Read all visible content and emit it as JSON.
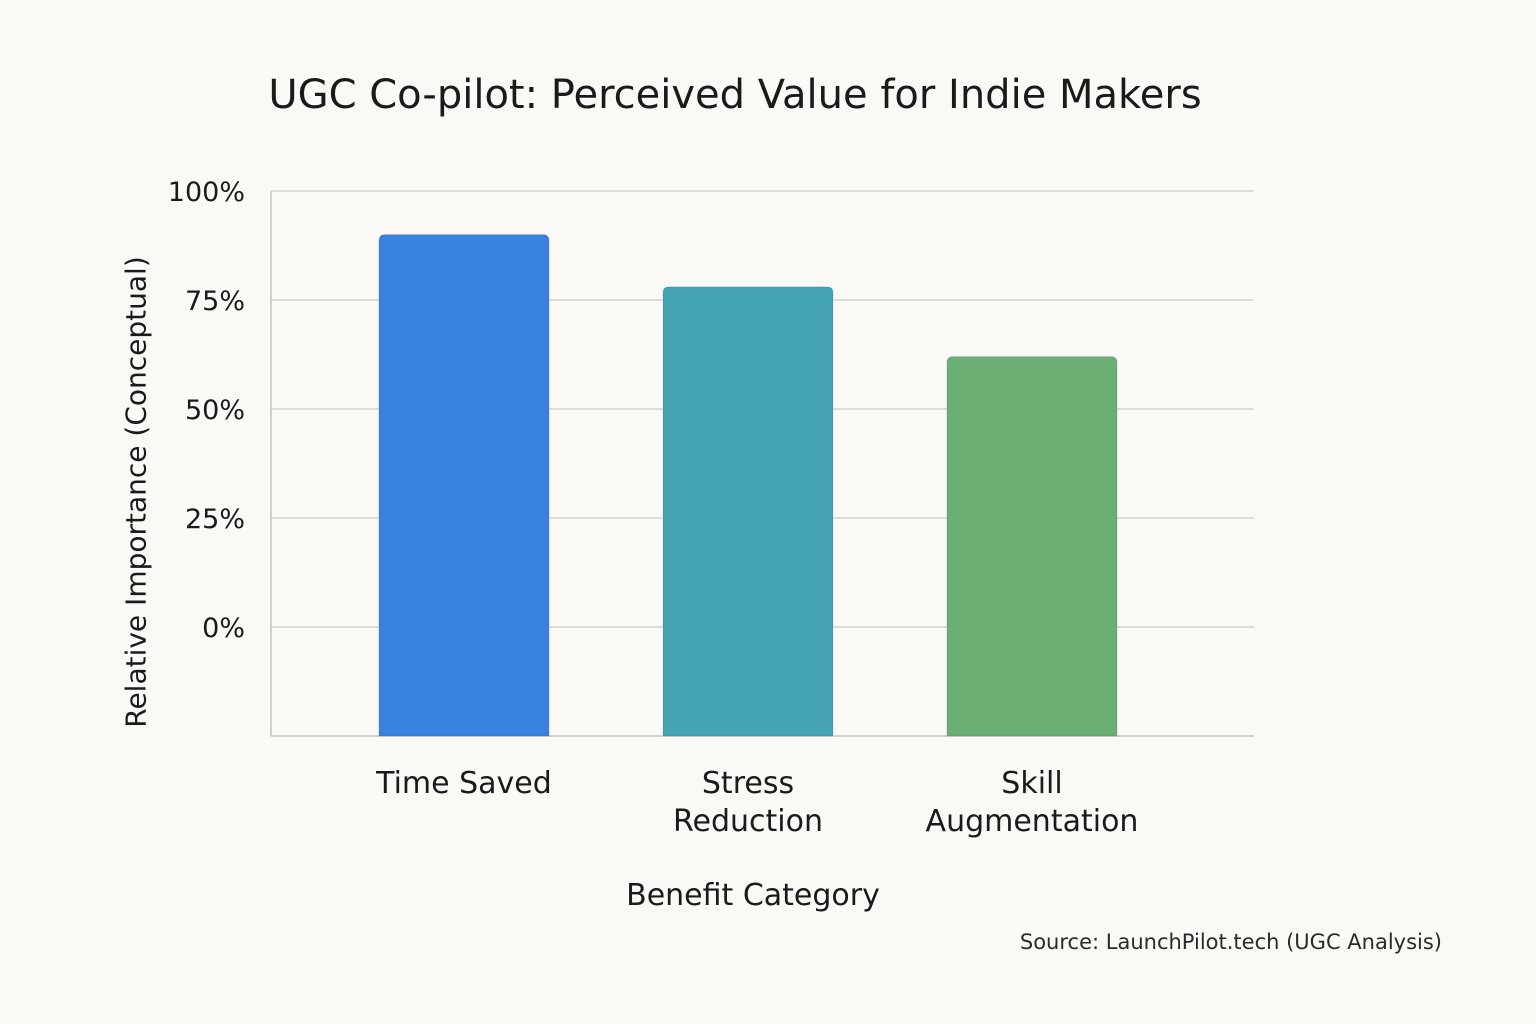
{
  "chart_data": {
    "type": "bar",
    "title": "UGC Co-pilot: Perceived Value for Indie Makers",
    "xlabel": "Benefit Category",
    "ylabel": "Relative Importance (Conceptual)",
    "categories": [
      [
        "Time Saved"
      ],
      [
        "Stress",
        "Reduction"
      ],
      [
        "Skill",
        "Augmentation"
      ]
    ],
    "values": [
      90,
      78,
      62
    ],
    "colors": [
      "#3a82e0",
      "#46a5b5",
      "#6baf74"
    ],
    "y_ticks": [
      {
        "value": 100,
        "label": "100%"
      },
      {
        "value": 75,
        "label": "75%"
      },
      {
        "value": 50,
        "label": "50%"
      },
      {
        "value": 25,
        "label": "25%"
      },
      {
        "value": 0,
        "label": "0%"
      }
    ],
    "ylim": [
      -25,
      100
    ],
    "grid": true,
    "legend": "none",
    "source": "Source: LaunchPilot.tech (UGC Analysis)"
  }
}
